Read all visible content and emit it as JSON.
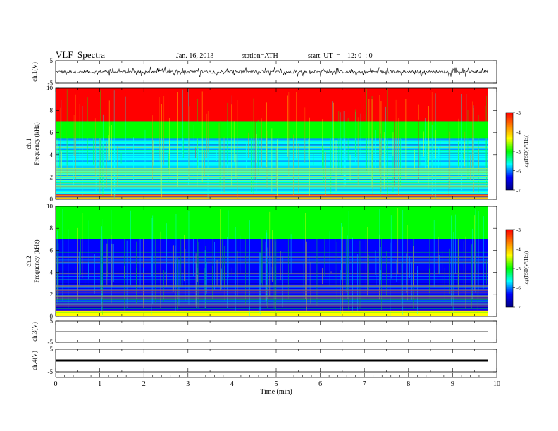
{
  "header": {
    "title": "VLF  Spectra",
    "date": "Jan. 16, 2013",
    "station": "station=ATH",
    "start": "start  UT  =    12: 0  : 0"
  },
  "colorbar": {
    "label": "log(PSD(V²/Hz))",
    "ticks": [
      "-3",
      "-4",
      "-5",
      "-6",
      "-7"
    ],
    "stops": [
      "#ff0000",
      "#ff8000",
      "#ffff00",
      "#00ff00",
      "#00ffff",
      "#0000ff",
      "#000080"
    ]
  },
  "chart_data": [
    {
      "type": "line",
      "panel": "ch1-waveform",
      "ylabel": "ch.1(V)",
      "ylim": [
        -5,
        5
      ],
      "yticks": [
        "5",
        "-5"
      ],
      "x_range_min": [
        0,
        9.8
      ],
      "description_of_trace": "dense noisy waveform near 0 V with spikes up to about ±2 V"
    },
    {
      "type": "heatmap",
      "panel": "ch1-spectrogram",
      "ylabel_top": "ch.1",
      "ylabel": "Frequency (kHz)",
      "ylim": [
        0,
        10
      ],
      "yticks": [
        "0",
        "2",
        "4",
        "6",
        "8",
        "10"
      ],
      "x_range_min": [
        0,
        9.8
      ],
      "bands_khz": [
        {
          "from": 0,
          "to": 0.5,
          "level": -3.5
        },
        {
          "from": 0.5,
          "to": 5.5,
          "level": -5.8
        },
        {
          "from": 5.5,
          "to": 7,
          "level": -4.8
        },
        {
          "from": 7,
          "to": 10,
          "level": -3.3
        }
      ]
    },
    {
      "type": "heatmap",
      "panel": "ch2-spectrogram",
      "ylabel_top": "ch.2",
      "ylabel": "Frequency (kHz)",
      "ylim": [
        0,
        10
      ],
      "yticks": [
        "0",
        "2",
        "4",
        "6",
        "8",
        "10"
      ],
      "x_range_min": [
        0,
        9.8
      ],
      "bands_khz": [
        {
          "from": 0,
          "to": 0.5,
          "level": -4.0
        },
        {
          "from": 0.5,
          "to": 4,
          "level": -6.0
        },
        {
          "from": 4,
          "to": 7,
          "level": -6.5
        },
        {
          "from": 7,
          "to": 10,
          "level": -5.3
        }
      ]
    },
    {
      "type": "line",
      "panel": "ch3-waveform",
      "ylabel": "ch.3(V)",
      "ylim": [
        -5,
        5
      ],
      "yticks": [
        "5",
        "-5"
      ],
      "x_range_min": [
        0,
        9.8
      ],
      "level": 0
    },
    {
      "type": "line",
      "panel": "ch4-waveform",
      "ylabel": "ch.4(V)",
      "ylim": [
        -5,
        5
      ],
      "yticks": [
        "5",
        "-5"
      ],
      "x_range_min": [
        0,
        9.8
      ],
      "level": 0
    }
  ],
  "xaxis": {
    "label": "Time  (min)",
    "xlim": [
      0,
      10
    ],
    "ticks": [
      "0",
      "1",
      "2",
      "3",
      "4",
      "5",
      "6",
      "7",
      "8",
      "9",
      "10"
    ]
  }
}
